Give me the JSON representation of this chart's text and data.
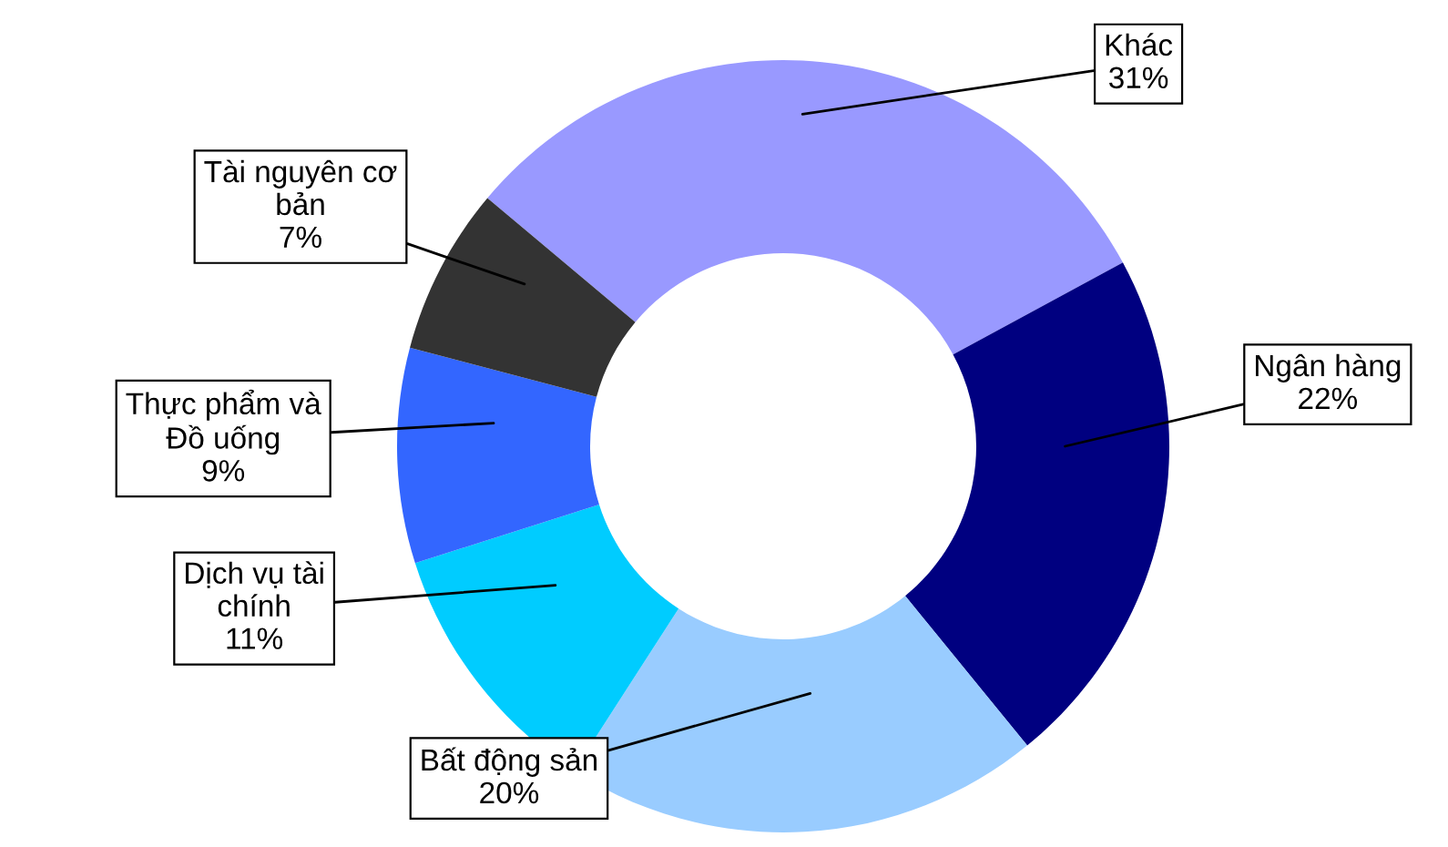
{
  "chart_data": {
    "type": "donut",
    "categories": [
      "Khác",
      "Ngân hàng",
      "Bất động sản",
      "Dịch vụ tài\nchính",
      "Thực phẩm và\nĐồ uống",
      "Tài nguyên cơ\nbản"
    ],
    "values": [
      31,
      22,
      20,
      11,
      9,
      7
    ],
    "colors": [
      "#9999ff",
      "#000080",
      "#99ccff",
      "#00ccff",
      "#3366ff",
      "#333333"
    ],
    "value_labels": [
      "31%",
      "22%",
      "20%",
      "11%",
      "9%",
      "7%"
    ],
    "legend": false
  }
}
